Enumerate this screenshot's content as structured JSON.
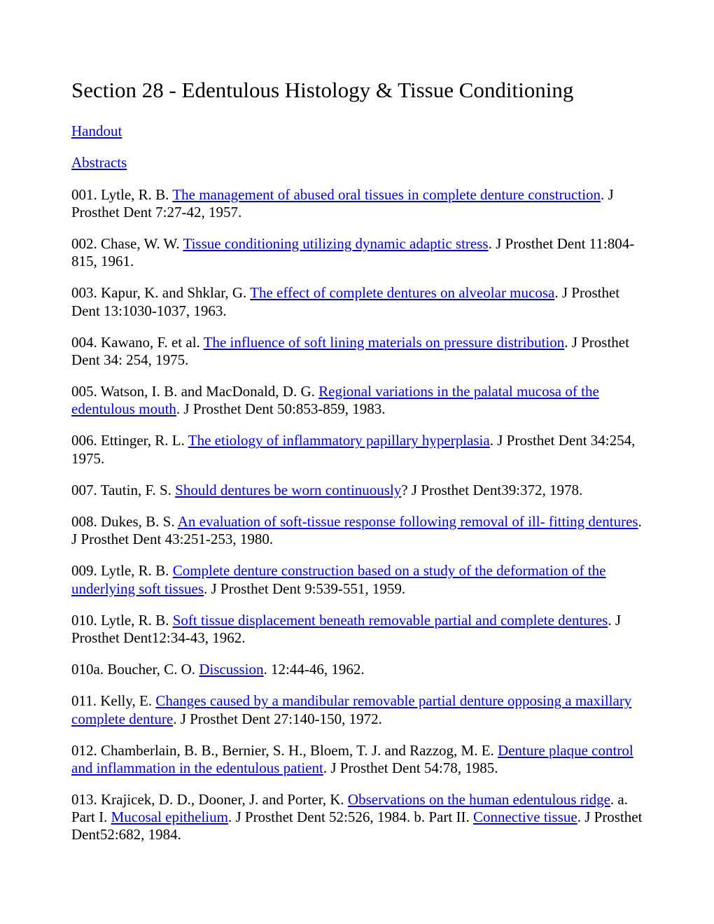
{
  "title": "Section 28 - Edentulous Histology & Tissue Conditioning",
  "nav_links": {
    "handout": "Handout",
    "abstracts": "Abstracts"
  },
  "references": [
    {
      "num": "001.",
      "author": "Lytle, R. B.",
      "link": "The management of abused oral tissues in complete denture construction",
      "after": ". J Prosthet Dent 7:27-42, 1957."
    },
    {
      "num": "002.",
      "author": "Chase, W. W.",
      "link": "Tissue conditioning utilizing dynamic adaptic stress",
      "after": ". J Prosthet Dent 11:804-815, 1961."
    },
    {
      "num": "003.",
      "author": "Kapur, K. and Shklar, G.",
      "link": "The effect of complete dentures on alveolar mucosa",
      "after": ". J Prosthet Dent 13:1030-1037, 1963."
    },
    {
      "num": "004.",
      "author": "Kawano, F. et al.",
      "link": "The influence of soft lining materials on pressure distribution",
      "after": ". J Prosthet Dent 34: 254, 1975."
    },
    {
      "num": "005.",
      "author": "Watson, I. B. and MacDonald, D. G.",
      "link": "Regional variations in the palatal mucosa of the edentulous mouth",
      "after": ". J Prosthet Dent 50:853-859, 1983."
    },
    {
      "num": "006.",
      "author": "Ettinger, R. L.",
      "link": "The etiology of inflammatory papillary hyperplasia",
      "after": ". J Prosthet Dent 34:254, 1975."
    },
    {
      "num": "007.",
      "author": "Tautin, F. S.",
      "link": "Should dentures be worn continuously",
      "after": "?  J Prosthet Dent39:372, 1978."
    },
    {
      "num": "008.",
      "author": "Dukes, B. S.",
      "link": "An evaluation of soft-tissue response following removal of ill- fitting dentures",
      "after": ". J Prosthet Dent 43:251-253, 1980."
    },
    {
      "num": "009.",
      "author": "Lytle, R. B.",
      "link": "Complete denture construction based on a study of the deformation of the underlying soft tissues",
      "after": ". J Prosthet Dent 9:539-551, 1959."
    },
    {
      "num": "010.",
      "author": "Lytle, R. B.",
      "link": "Soft tissue displacement beneath removable partial and complete dentures",
      "after": ".  J Prosthet Dent12:34-43, 1962."
    },
    {
      "num": "010a.",
      "author": "Boucher, C. O.",
      "link": "Discussion",
      "after": ". 12:44-46, 1962."
    },
    {
      "num": "011.",
      "author": "Kelly, E.",
      "link": "Changes caused by a mandibular removable partial denture opposing a maxillary complete denture",
      "after": ". J Prosthet Dent 27:140-150, 1972."
    },
    {
      "num": "012.",
      "author": "Chamberlain, B. B., Bernier, S. H., Bloem, T. J. and Razzog, M. E.",
      "link": "Denture plaque control and inflammation in the edentulous patient",
      "after": ". J Prosthet Dent 54:78, 1985."
    }
  ],
  "ref13": {
    "num": "013.",
    "author": "Krajicek, D. D., Dooner, J. and Porter, K.",
    "link1": "Observations on the human edentulous ridge",
    "mid1": ". a. Part I. ",
    "link2": "Mucosal epithelium",
    "mid2": ". J Prosthet Dent 52:526, 1984. b. Part II. ",
    "link3": "Connective tissue",
    "after": ".  J Prosthet Dent52:682, 1984."
  }
}
